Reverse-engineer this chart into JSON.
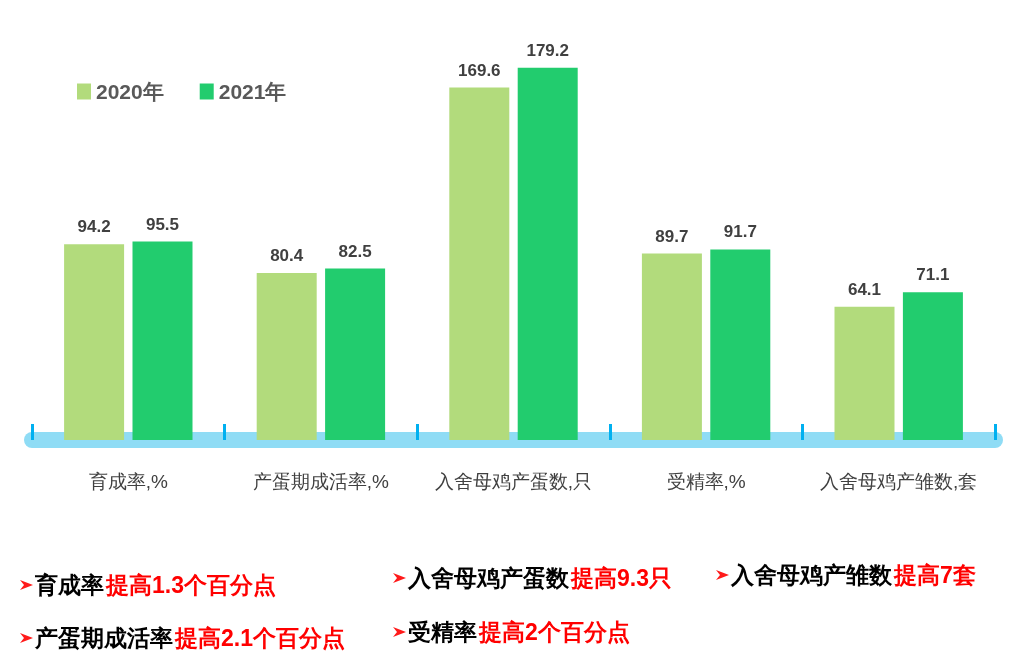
{
  "chart_data": {
    "type": "bar",
    "categories": [
      "育成率,%",
      "产蛋期成活率,%",
      "入舍母鸡产蛋数,只",
      "受精率,%",
      "入舍母鸡产雏数,套"
    ],
    "series": [
      {
        "name": "2020年",
        "color": "#b2db7c",
        "values": [
          94.2,
          80.4,
          169.6,
          89.7,
          64.1
        ]
      },
      {
        "name": "2021年",
        "color": "#22cc6e",
        "values": [
          95.5,
          82.5,
          179.2,
          91.7,
          71.1
        ]
      }
    ],
    "data_labels": true,
    "legend": "top left",
    "tick_labels": "x",
    "annotations": [
      "育成率",
      "提高1.3个百分点",
      "入舍母鸡产蛋数",
      "提高9.3只",
      "入舍母鸡产雏数",
      "提高7套",
      "产蛋期成活率",
      "提高2.1个百分点",
      "受精率",
      "提高2个百分点"
    ]
  }
}
